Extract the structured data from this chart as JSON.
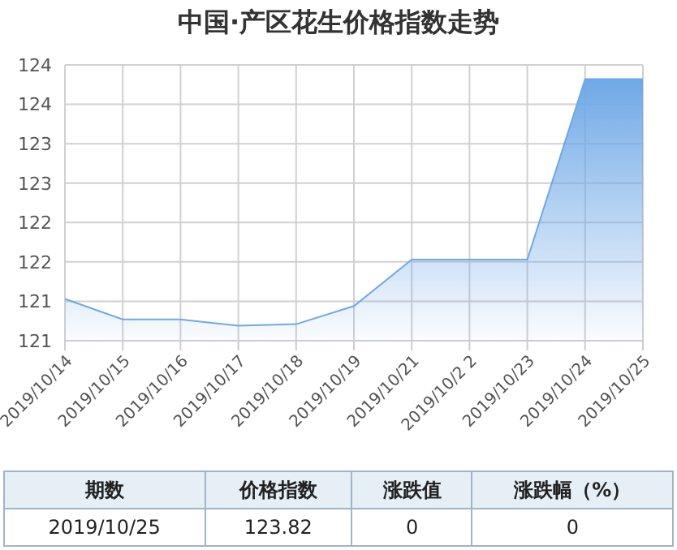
{
  "chart_data": {
    "type": "area",
    "title": "中国·产区花生价格指数走势",
    "categories": [
      "2019/10/14",
      "2019/10/15",
      "2019/10/16",
      "2019/10/17",
      "2019/10/18",
      "2019/10/19",
      "2019/10/21",
      "2019/10/2 2",
      "2019/10/23",
      "2019/10/24",
      "2019/10/25"
    ],
    "series": [
      {
        "color": "#6fa8e6",
        "values": [
          121.03,
          120.77,
          120.77,
          120.69,
          120.71,
          120.94,
          121.53,
          121.53,
          121.53,
          123.82,
          123.82
        ]
      }
    ],
    "ylim": [
      120.5,
      124.0
    ],
    "yticks": [
      {
        "value": 120.5,
        "label": "121"
      },
      {
        "value": 121.0,
        "label": "121"
      },
      {
        "value": 121.5,
        "label": "122"
      },
      {
        "value": 122.0,
        "label": "122"
      },
      {
        "value": 122.5,
        "label": "123"
      },
      {
        "value": 123.0,
        "label": "123"
      },
      {
        "value": 123.5,
        "label": "124"
      },
      {
        "value": 124.0,
        "label": "124"
      }
    ],
    "grid": true,
    "annotations": [
      "期数",
      "价格指数",
      "涨跌值",
      "涨跌幅（%）",
      "2019/10/25",
      "123.82",
      "0",
      "0"
    ]
  }
}
